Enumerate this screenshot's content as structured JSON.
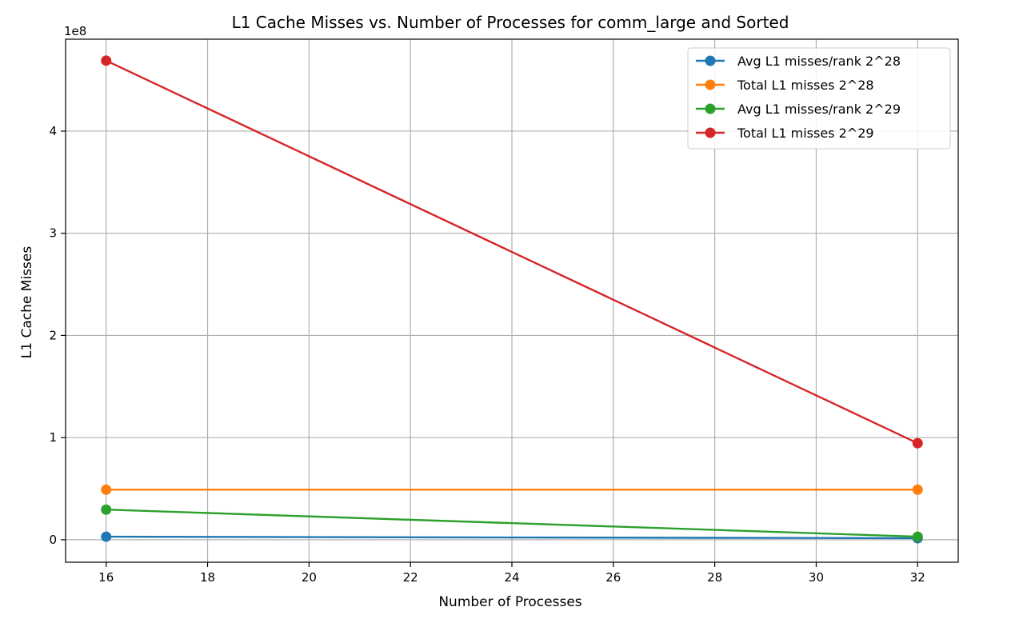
{
  "chart_data": {
    "type": "line",
    "title": "L1 Cache Misses vs. Number of Processes for comm_large and Sorted",
    "xlabel": "Number of Processes",
    "ylabel": "L1 Cache Misses",
    "y_offset_label": "1e8",
    "xlim": [
      15.2,
      32.8
    ],
    "ylim": [
      -22000000,
      490000000
    ],
    "x_ticks": [
      16,
      18,
      20,
      22,
      24,
      26,
      28,
      30,
      32
    ],
    "y_ticks": [
      0,
      100000000,
      200000000,
      300000000,
      400000000
    ],
    "y_tick_labels": [
      "0",
      "1",
      "2",
      "3",
      "4"
    ],
    "grid": true,
    "legend_position": "top-right",
    "x": [
      16,
      32
    ],
    "series": [
      {
        "name": "Avg L1 misses/rank 2^28",
        "color": "#1f77b4",
        "values": [
          3000000,
          1500000
        ]
      },
      {
        "name": "Total L1 misses 2^28",
        "color": "#ff7f0e",
        "values": [
          49000000,
          49000000
        ]
      },
      {
        "name": "Avg L1 misses/rank 2^29",
        "color": "#2ca02c",
        "values": [
          29500000,
          3000000
        ]
      },
      {
        "name": "Total L1 misses 2^29",
        "color": "#d62728",
        "values": [
          469000000,
          94500000
        ]
      }
    ]
  }
}
